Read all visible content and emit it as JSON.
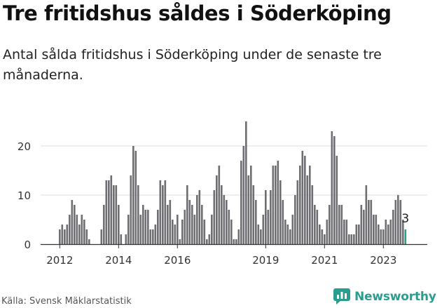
{
  "title": "Tre fritidshus såldes i Söderköping",
  "subtitle": "Antal sålda fritidshus i Söderköping under de senaste tre månaderna.",
  "source": "Källa: Svensk Mäklarstatistik",
  "brand": {
    "name": "Newsworthy",
    "icon": "newsworthy-logo-icon",
    "color": "#2a9d8f"
  },
  "chart_data": {
    "type": "bar",
    "title": "",
    "xlabel": "",
    "ylabel": "",
    "ylim": [
      0,
      25
    ],
    "yticks": [
      0,
      10,
      20
    ],
    "grid": true,
    "legend": "none",
    "bar_color": "#6e6e73",
    "highlight_color": "#2a9d8f",
    "x_tick_labels": [
      "2012",
      "2014",
      "2016",
      "2019",
      "2021",
      "2023"
    ],
    "x_tick_label_indices": [
      0,
      24,
      48,
      84,
      108,
      132
    ],
    "highlight_label": "3",
    "values": [
      3,
      4,
      3,
      4,
      6,
      9,
      8,
      6,
      4,
      6,
      5,
      3,
      1,
      0,
      0,
      0,
      0,
      3,
      8,
      13,
      13,
      14,
      12,
      12,
      8,
      2,
      0,
      2,
      6,
      14,
      20,
      19,
      12,
      6,
      8,
      7,
      7,
      3,
      3,
      4,
      7,
      13,
      12,
      13,
      8,
      9,
      5,
      4,
      6,
      1,
      5,
      7,
      12,
      9,
      8,
      6,
      10,
      11,
      8,
      5,
      1,
      2,
      6,
      11,
      14,
      16,
      12,
      10,
      9,
      7,
      5,
      1,
      1,
      3,
      17,
      20,
      25,
      14,
      16,
      12,
      9,
      4,
      3,
      6,
      11,
      7,
      11,
      16,
      16,
      17,
      13,
      9,
      5,
      4,
      3,
      6,
      10,
      13,
      16,
      19,
      18,
      14,
      16,
      12,
      8,
      7,
      4,
      3,
      2,
      5,
      8,
      23,
      22,
      18,
      8,
      8,
      5,
      5,
      2,
      2,
      2,
      4,
      4,
      8,
      7,
      12,
      9,
      9,
      6,
      6,
      4,
      3,
      3,
      5,
      4,
      5,
      7,
      9,
      10,
      9,
      5,
      3
    ]
  }
}
